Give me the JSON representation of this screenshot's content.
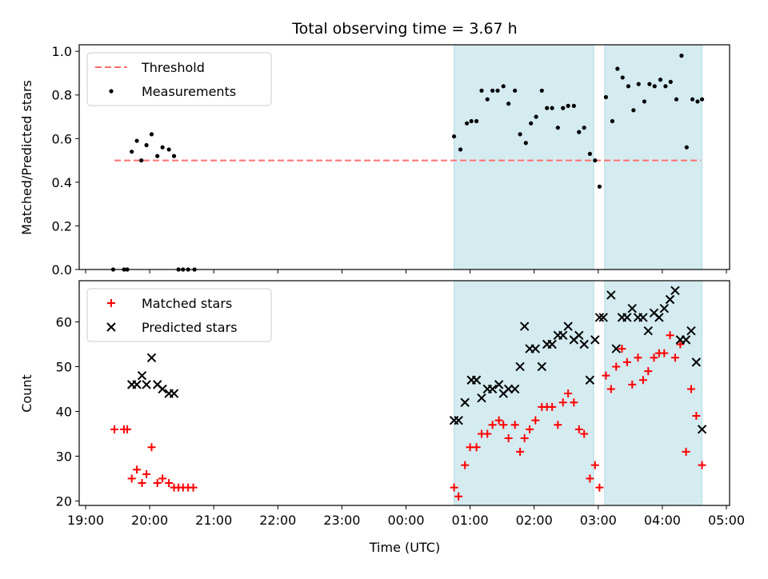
{
  "chart_data": [
    {
      "type": "scatter",
      "title": "Total observing time = 3.67 h",
      "ylabel": "Matched/Predicted stars",
      "xlabel": "",
      "ylim": [
        0,
        1.03
      ],
      "xlim_hours": [
        18.9,
        29.05
      ],
      "y_ticks": [
        "0.0",
        "0.2",
        "0.4",
        "0.6",
        "0.8",
        "1.0"
      ],
      "y_tick_values": [
        0,
        0.2,
        0.4,
        0.6,
        0.8,
        1.0
      ],
      "grid": false,
      "legend_position": "top-left",
      "threshold": {
        "name": "Threshold",
        "value": 0.5,
        "x_range_hours": [
          19.45,
          28.6
        ],
        "color": "#ff7070"
      },
      "shaded_spans_hours": [
        [
          24.75,
          26.93
        ],
        [
          27.1,
          28.62
        ]
      ],
      "shade_color": "#d4ebf0",
      "series": [
        {
          "name": "Measurements",
          "color": "#000000",
          "points": [
            [
              19.43,
              0.0
            ],
            [
              19.6,
              0.0
            ],
            [
              19.65,
              0.0
            ],
            [
              19.72,
              0.54
            ],
            [
              19.8,
              0.59
            ],
            [
              19.87,
              0.5
            ],
            [
              19.95,
              0.57
            ],
            [
              20.03,
              0.62
            ],
            [
              20.12,
              0.52
            ],
            [
              20.2,
              0.56
            ],
            [
              20.3,
              0.55
            ],
            [
              20.38,
              0.52
            ],
            [
              20.45,
              0.0
            ],
            [
              20.52,
              0.0
            ],
            [
              20.6,
              0.0
            ],
            [
              20.7,
              0.0
            ],
            [
              24.75,
              0.61
            ],
            [
              24.85,
              0.55
            ],
            [
              24.95,
              0.67
            ],
            [
              25.02,
              0.68
            ],
            [
              25.1,
              0.68
            ],
            [
              25.18,
              0.82
            ],
            [
              25.27,
              0.78
            ],
            [
              25.35,
              0.82
            ],
            [
              25.43,
              0.82
            ],
            [
              25.52,
              0.84
            ],
            [
              25.6,
              0.76
            ],
            [
              25.7,
              0.82
            ],
            [
              25.78,
              0.62
            ],
            [
              25.87,
              0.58
            ],
            [
              25.95,
              0.67
            ],
            [
              26.03,
              0.7
            ],
            [
              26.12,
              0.82
            ],
            [
              26.2,
              0.74
            ],
            [
              26.28,
              0.74
            ],
            [
              26.37,
              0.65
            ],
            [
              26.45,
              0.74
            ],
            [
              26.53,
              0.75
            ],
            [
              26.62,
              0.75
            ],
            [
              26.7,
              0.63
            ],
            [
              26.78,
              0.65
            ],
            [
              26.87,
              0.53
            ],
            [
              26.95,
              0.5
            ],
            [
              27.02,
              0.38
            ],
            [
              27.12,
              0.79
            ],
            [
              27.22,
              0.68
            ],
            [
              27.3,
              0.92
            ],
            [
              27.38,
              0.88
            ],
            [
              27.47,
              0.84
            ],
            [
              27.55,
              0.73
            ],
            [
              27.63,
              0.85
            ],
            [
              27.72,
              0.77
            ],
            [
              27.8,
              0.85
            ],
            [
              27.88,
              0.84
            ],
            [
              27.97,
              0.87
            ],
            [
              28.05,
              0.84
            ],
            [
              28.13,
              0.86
            ],
            [
              28.22,
              0.78
            ],
            [
              28.3,
              0.98
            ],
            [
              28.38,
              0.56
            ],
            [
              28.47,
              0.78
            ],
            [
              28.55,
              0.77
            ],
            [
              28.62,
              0.78
            ]
          ]
        }
      ]
    },
    {
      "type": "scatter",
      "title": "",
      "ylabel": "Count",
      "xlabel": "Time (UTC)",
      "ylim": [
        19,
        69.2
      ],
      "xlim_hours": [
        18.9,
        29.05
      ],
      "x_ticks": [
        "19:00",
        "20:00",
        "21:00",
        "22:00",
        "23:00",
        "00:00",
        "01:00",
        "02:00",
        "03:00",
        "04:00",
        "05:00"
      ],
      "x_tick_hours": [
        19,
        20,
        21,
        22,
        23,
        24,
        25,
        26,
        27,
        28,
        29
      ],
      "y_ticks": [
        "20",
        "30",
        "40",
        "50",
        "60"
      ],
      "y_tick_values": [
        20,
        30,
        40,
        50,
        60
      ],
      "grid": false,
      "legend_position": "top-left",
      "shaded_spans_hours": [
        [
          24.75,
          26.93
        ],
        [
          27.1,
          28.62
        ]
      ],
      "shade_color": "#d4ebf0",
      "series": [
        {
          "name": "Matched stars",
          "color": "#ff0000",
          "marker": "plus",
          "points": [
            [
              19.45,
              36
            ],
            [
              19.6,
              36
            ],
            [
              19.65,
              36
            ],
            [
              19.72,
              25
            ],
            [
              19.8,
              27
            ],
            [
              19.88,
              24
            ],
            [
              19.95,
              26
            ],
            [
              20.03,
              32
            ],
            [
              20.12,
              24
            ],
            [
              20.2,
              25
            ],
            [
              20.3,
              24
            ],
            [
              20.38,
              23
            ],
            [
              20.45,
              23
            ],
            [
              20.52,
              23
            ],
            [
              20.6,
              23
            ],
            [
              20.68,
              23
            ],
            [
              24.75,
              23
            ],
            [
              24.82,
              21
            ],
            [
              24.92,
              28
            ],
            [
              25.0,
              32
            ],
            [
              25.1,
              32
            ],
            [
              25.18,
              35
            ],
            [
              25.27,
              35
            ],
            [
              25.35,
              37
            ],
            [
              25.45,
              38
            ],
            [
              25.52,
              37
            ],
            [
              25.6,
              34
            ],
            [
              25.7,
              37
            ],
            [
              25.78,
              31
            ],
            [
              25.85,
              34
            ],
            [
              25.93,
              36
            ],
            [
              26.02,
              38
            ],
            [
              26.12,
              41
            ],
            [
              26.2,
              41
            ],
            [
              26.28,
              41
            ],
            [
              26.37,
              37
            ],
            [
              26.45,
              42
            ],
            [
              26.53,
              44
            ],
            [
              26.62,
              42
            ],
            [
              26.7,
              36
            ],
            [
              26.78,
              35
            ],
            [
              26.87,
              25
            ],
            [
              26.95,
              28
            ],
            [
              27.02,
              23
            ],
            [
              27.12,
              48
            ],
            [
              27.2,
              45
            ],
            [
              27.28,
              50
            ],
            [
              27.37,
              54
            ],
            [
              27.45,
              51
            ],
            [
              27.53,
              46
            ],
            [
              27.62,
              52
            ],
            [
              27.7,
              47
            ],
            [
              27.78,
              49
            ],
            [
              27.87,
              52
            ],
            [
              27.95,
              53
            ],
            [
              28.03,
              53
            ],
            [
              28.12,
              57
            ],
            [
              28.2,
              52
            ],
            [
              28.28,
              55
            ],
            [
              28.37,
              31
            ],
            [
              28.45,
              45
            ],
            [
              28.53,
              39
            ],
            [
              28.62,
              28
            ]
          ]
        },
        {
          "name": "Predicted stars",
          "color": "#000000",
          "marker": "x",
          "points": [
            [
              19.72,
              46
            ],
            [
              19.8,
              46
            ],
            [
              19.88,
              48
            ],
            [
              19.95,
              46
            ],
            [
              20.03,
              52
            ],
            [
              20.12,
              46
            ],
            [
              20.2,
              45
            ],
            [
              20.3,
              44
            ],
            [
              20.38,
              44
            ],
            [
              24.75,
              38
            ],
            [
              24.82,
              38
            ],
            [
              24.92,
              42
            ],
            [
              25.02,
              47
            ],
            [
              25.1,
              47
            ],
            [
              25.18,
              43
            ],
            [
              25.27,
              45
            ],
            [
              25.35,
              45
            ],
            [
              25.45,
              46
            ],
            [
              25.52,
              44
            ],
            [
              25.6,
              45
            ],
            [
              25.7,
              45
            ],
            [
              25.78,
              50
            ],
            [
              25.85,
              59
            ],
            [
              25.93,
              54
            ],
            [
              26.02,
              54
            ],
            [
              26.12,
              50
            ],
            [
              26.2,
              55
            ],
            [
              26.28,
              55
            ],
            [
              26.37,
              57
            ],
            [
              26.45,
              57
            ],
            [
              26.53,
              59
            ],
            [
              26.62,
              56
            ],
            [
              26.7,
              57
            ],
            [
              26.78,
              55
            ],
            [
              26.87,
              47
            ],
            [
              26.95,
              56
            ],
            [
              27.02,
              61
            ],
            [
              27.08,
              61
            ],
            [
              27.2,
              66
            ],
            [
              27.28,
              54
            ],
            [
              27.37,
              61
            ],
            [
              27.45,
              61
            ],
            [
              27.53,
              63
            ],
            [
              27.62,
              61
            ],
            [
              27.7,
              61
            ],
            [
              27.78,
              58
            ],
            [
              27.87,
              62
            ],
            [
              27.95,
              61
            ],
            [
              28.03,
              63
            ],
            [
              28.12,
              65
            ],
            [
              28.2,
              67
            ],
            [
              28.28,
              56
            ],
            [
              28.37,
              56
            ],
            [
              28.45,
              58
            ],
            [
              28.53,
              51
            ],
            [
              28.62,
              36
            ]
          ]
        }
      ]
    }
  ]
}
